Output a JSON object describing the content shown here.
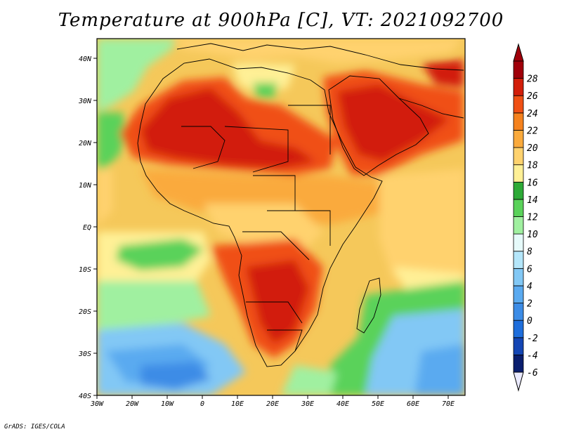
{
  "title": "Temperature at 900hPa [C], VT: 2021092700",
  "credit": "GrADS: IGES/COLA",
  "map": {
    "lon_range": [
      -30,
      75
    ],
    "lat_range": [
      -40,
      45
    ],
    "lon_ticks": [
      "30W",
      "20W",
      "10W",
      "0",
      "10E",
      "20E",
      "30E",
      "40E",
      "50E",
      "60E",
      "70E"
    ],
    "lat_ticks": [
      "40S",
      "30S",
      "20S",
      "10S",
      "EQ",
      "10N",
      "20N",
      "30N",
      "40N"
    ]
  },
  "colorbar": {
    "levels": [
      "-6",
      "-4",
      "-2",
      "0",
      "2",
      "4",
      "6",
      "8",
      "10",
      "12",
      "14",
      "16",
      "18",
      "20",
      "22",
      "24",
      "26",
      "28"
    ],
    "colors": [
      "#0a1e6e",
      "#1446b4",
      "#1e6edc",
      "#3c8ce6",
      "#5aaaf0",
      "#82c8f5",
      "#b4e6fa",
      "#e6fafa",
      "#a0f0a0",
      "#5ad25a",
      "#2daa37",
      "#fff096",
      "#ffd26e",
      "#faaa3c",
      "#f5821e",
      "#f05014",
      "#d21e0a",
      "#a0000a"
    ]
  },
  "icons": {
    "arrow_up": "colorbar-arrow-up-icon",
    "arrow_down": "colorbar-arrow-down-icon"
  }
}
